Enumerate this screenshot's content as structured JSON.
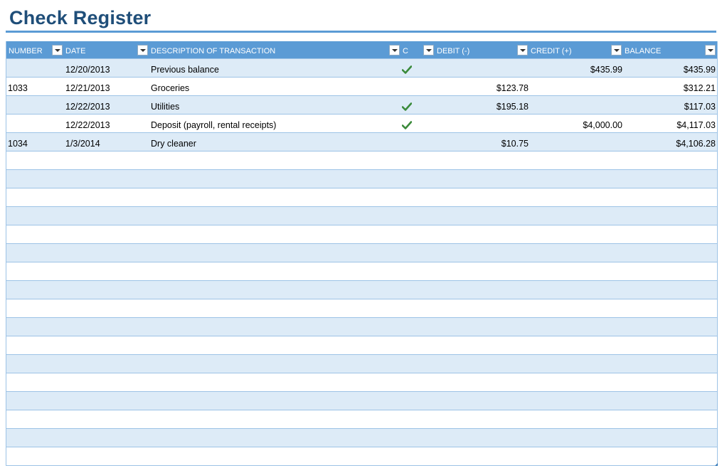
{
  "title": "Check Register",
  "colors": {
    "accent": "#5b9bd5",
    "title": "#1f4e79",
    "band": "#ddebf7",
    "check": "#3a8a3a"
  },
  "columns": {
    "number": "NUMBER",
    "date": "DATE",
    "description": "DESCRIPTION OF TRANSACTION",
    "c": "C",
    "debit": "DEBIT (-)",
    "credit": "CREDIT (+)",
    "balance": "BALANCE"
  },
  "rows": [
    {
      "number": "",
      "date": "12/20/2013",
      "description": "Previous balance",
      "cleared": true,
      "debit": "",
      "credit": "$435.99",
      "balance": "$435.99"
    },
    {
      "number": "1033",
      "date": "12/21/2013",
      "description": "Groceries",
      "cleared": false,
      "debit": "$123.78",
      "credit": "",
      "balance": "$312.21"
    },
    {
      "number": "",
      "date": "12/22/2013",
      "description": "Utilities",
      "cleared": true,
      "debit": "$195.18",
      "credit": "",
      "balance": "$117.03"
    },
    {
      "number": "",
      "date": "12/22/2013",
      "description": "Deposit (payroll, rental receipts)",
      "cleared": true,
      "debit": "",
      "credit": "$4,000.00",
      "balance": "$4,117.03"
    },
    {
      "number": "1034",
      "date": "1/3/2014",
      "description": "Dry cleaner",
      "cleared": false,
      "debit": "$10.75",
      "credit": "",
      "balance": "$4,106.28"
    },
    {
      "number": "",
      "date": "",
      "description": "",
      "cleared": false,
      "debit": "",
      "credit": "",
      "balance": ""
    },
    {
      "number": "",
      "date": "",
      "description": "",
      "cleared": false,
      "debit": "",
      "credit": "",
      "balance": ""
    },
    {
      "number": "",
      "date": "",
      "description": "",
      "cleared": false,
      "debit": "",
      "credit": "",
      "balance": ""
    },
    {
      "number": "",
      "date": "",
      "description": "",
      "cleared": false,
      "debit": "",
      "credit": "",
      "balance": ""
    },
    {
      "number": "",
      "date": "",
      "description": "",
      "cleared": false,
      "debit": "",
      "credit": "",
      "balance": ""
    },
    {
      "number": "",
      "date": "",
      "description": "",
      "cleared": false,
      "debit": "",
      "credit": "",
      "balance": ""
    },
    {
      "number": "",
      "date": "",
      "description": "",
      "cleared": false,
      "debit": "",
      "credit": "",
      "balance": ""
    },
    {
      "number": "",
      "date": "",
      "description": "",
      "cleared": false,
      "debit": "",
      "credit": "",
      "balance": ""
    },
    {
      "number": "",
      "date": "",
      "description": "",
      "cleared": false,
      "debit": "",
      "credit": "",
      "balance": ""
    },
    {
      "number": "",
      "date": "",
      "description": "",
      "cleared": false,
      "debit": "",
      "credit": "",
      "balance": ""
    },
    {
      "number": "",
      "date": "",
      "description": "",
      "cleared": false,
      "debit": "",
      "credit": "",
      "balance": ""
    },
    {
      "number": "",
      "date": "",
      "description": "",
      "cleared": false,
      "debit": "",
      "credit": "",
      "balance": ""
    },
    {
      "number": "",
      "date": "",
      "description": "",
      "cleared": false,
      "debit": "",
      "credit": "",
      "balance": ""
    },
    {
      "number": "",
      "date": "",
      "description": "",
      "cleared": false,
      "debit": "",
      "credit": "",
      "balance": ""
    },
    {
      "number": "",
      "date": "",
      "description": "",
      "cleared": false,
      "debit": "",
      "credit": "",
      "balance": ""
    },
    {
      "number": "",
      "date": "",
      "description": "",
      "cleared": false,
      "debit": "",
      "credit": "",
      "balance": ""
    },
    {
      "number": "",
      "date": "",
      "description": "",
      "cleared": false,
      "debit": "",
      "credit": "",
      "balance": ""
    }
  ]
}
